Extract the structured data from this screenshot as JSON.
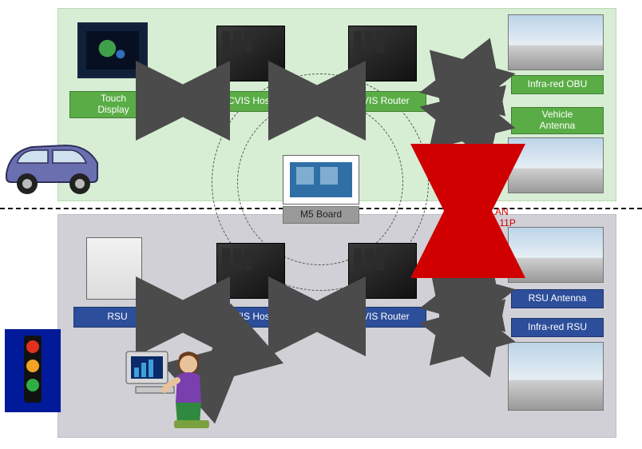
{
  "diagram": {
    "type": "network",
    "zones": {
      "vehicle": {
        "background_color": "#d7edd4",
        "border_color": "#bcd9b7"
      },
      "roadside": {
        "background_color": "#d0d0d6",
        "border_color": "#bfbfc6"
      }
    },
    "divider": {
      "style": "dashed",
      "color": "#111111"
    },
    "ring": {
      "style": "dashed",
      "color": "#555555"
    },
    "label_styles": {
      "green": {
        "bg": "#5aad46",
        "border": "#3f7d31",
        "text": "#ffffff"
      },
      "blue": {
        "bg": "#2c4e9b",
        "border": "#1e366b",
        "text": "#ffffff"
      },
      "gray": {
        "bg": "#9a9a9a",
        "border": "#777777",
        "text": "#222222"
      }
    },
    "arrow_colors": {
      "default": "#4b4b4b",
      "wlan": "#d00000"
    },
    "nodes": {
      "touch_display": {
        "label": "Touch\nDisplay",
        "style": "green"
      },
      "cvis_host_top": {
        "label": "CVIS Host",
        "style": "green"
      },
      "cvis_router_top": {
        "label": "CVIS Router",
        "style": "green"
      },
      "infra_red_obu": {
        "label": "Infra-red OBU",
        "style": "green"
      },
      "vehicle_antenna": {
        "label": "Vehicle\nAntenna",
        "style": "green"
      },
      "m5_board": {
        "label": "M5 Board",
        "style": "gray"
      },
      "rsu": {
        "label": "RSU",
        "style": "blue"
      },
      "cvis_host_bot": {
        "label": "CVIS Host",
        "style": "blue"
      },
      "cvis_router_bot": {
        "label": "CVIS Router",
        "style": "blue"
      },
      "rsu_antenna": {
        "label": "RSU Antenna",
        "style": "blue"
      },
      "infra_red_rsu": {
        "label": "Infra-red RSU",
        "style": "blue"
      }
    },
    "edges": [
      {
        "from": "touch_display",
        "to": "cvis_host_top",
        "bidir": true
      },
      {
        "from": "cvis_host_top",
        "to": "cvis_router_top",
        "bidir": true
      },
      {
        "from": "cvis_router_top",
        "to": "infra_red_obu",
        "bidir": true
      },
      {
        "from": "cvis_router_top",
        "to": "vehicle_antenna",
        "bidir": true
      },
      {
        "from": "rsu",
        "to": "cvis_host_bot",
        "bidir": true
      },
      {
        "from": "cvis_host_bot",
        "to": "cvis_router_bot",
        "bidir": true
      },
      {
        "from": "cvis_router_bot",
        "to": "rsu_antenna",
        "bidir": true
      },
      {
        "from": "cvis_router_bot",
        "to": "infra_red_rsu",
        "bidir": true
      },
      {
        "from": "operator",
        "to": "cvis_host_bot",
        "bidir": true
      },
      {
        "from": "vehicle_antenna",
        "to": "rsu_antenna",
        "bidir": true,
        "color": "wlan"
      }
    ],
    "wlan": {
      "line1": "WLAN",
      "line2": "802.11P",
      "color": "#d00000",
      "fontsize": 12
    },
    "font": {
      "family": "Verdana",
      "label_size_pt": 9
    }
  }
}
